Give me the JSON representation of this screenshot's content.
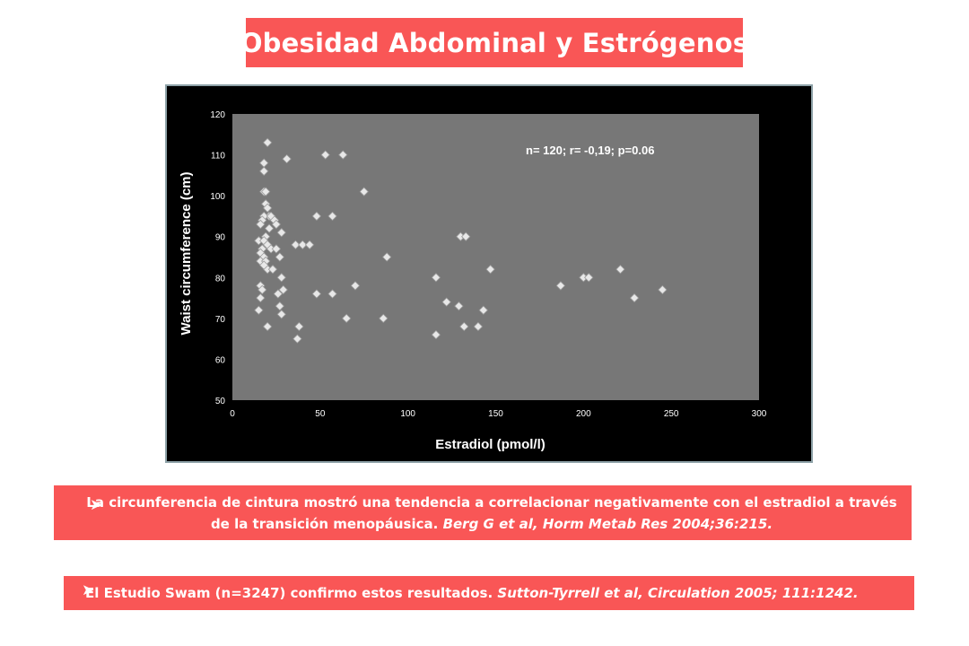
{
  "title": "Obesidad Abdominal y Estrógenos",
  "notes": {
    "bullet_icon": "arrow-bullet-icon",
    "note1_text": "La circunferencia de cintura mostró una tendencia a correlacionar negativamente con el estradiol a través de la transición menopáusica.",
    "note1_cite": "Berg G et al, Horm Metab Res 2004;36:215.",
    "note2_text": "El Estudio Swam (n=3247) confirmo estos resultados.",
    "note2_cite": "Sutton-Tyrrell et al, Circulation 2005; 111:1242."
  },
  "colors": {
    "accent": "#f95656",
    "plot_background": "#777777",
    "frame_background": "#000000",
    "frame_border": "#8fa3a9",
    "marker": "#e8e8e8"
  },
  "chart_data": {
    "type": "scatter",
    "annotation": "n= 120; r= -0,19; p=0.06",
    "xlabel": "Estradiol (pmol/l)",
    "ylabel": "Waist circumference (cm)",
    "xlim": [
      0,
      300
    ],
    "ylim": [
      50,
      120
    ],
    "xticks": [
      0,
      50,
      100,
      150,
      200,
      250,
      300
    ],
    "yticks": [
      50,
      60,
      70,
      80,
      90,
      100,
      110,
      120
    ],
    "grid": false,
    "legend": "none",
    "marker": "diamond",
    "points": [
      [
        20,
        113
      ],
      [
        18,
        108
      ],
      [
        18,
        106
      ],
      [
        31,
        109
      ],
      [
        53,
        110
      ],
      [
        63,
        110
      ],
      [
        18,
        101
      ],
      [
        19,
        101
      ],
      [
        75,
        101
      ],
      [
        19,
        98
      ],
      [
        20,
        97
      ],
      [
        21,
        95
      ],
      [
        18,
        95
      ],
      [
        17,
        94
      ],
      [
        22,
        95
      ],
      [
        24,
        94
      ],
      [
        16,
        93
      ],
      [
        25,
        93
      ],
      [
        48,
        95
      ],
      [
        57,
        95
      ],
      [
        21,
        92
      ],
      [
        28,
        91
      ],
      [
        19,
        90
      ],
      [
        15,
        89
      ],
      [
        18,
        89
      ],
      [
        20,
        88
      ],
      [
        22,
        87
      ],
      [
        25,
        87
      ],
      [
        36,
        88
      ],
      [
        40,
        88
      ],
      [
        44,
        88
      ],
      [
        17,
        87
      ],
      [
        16,
        86
      ],
      [
        18,
        85
      ],
      [
        27,
        85
      ],
      [
        88,
        85
      ],
      [
        16,
        84
      ],
      [
        19,
        84
      ],
      [
        20,
        82
      ],
      [
        23,
        82
      ],
      [
        28,
        80
      ],
      [
        18,
        83
      ],
      [
        116,
        80
      ],
      [
        147,
        82
      ],
      [
        187,
        78
      ],
      [
        200,
        80
      ],
      [
        203,
        80
      ],
      [
        221,
        82
      ],
      [
        16,
        78
      ],
      [
        17,
        77
      ],
      [
        29,
        77
      ],
      [
        70,
        78
      ],
      [
        229,
        75
      ],
      [
        245,
        77
      ],
      [
        26,
        76
      ],
      [
        16,
        75
      ],
      [
        48,
        76
      ],
      [
        57,
        76
      ],
      [
        27,
        73
      ],
      [
        15,
        72
      ],
      [
        28,
        71
      ],
      [
        122,
        74
      ],
      [
        129,
        73
      ],
      [
        143,
        72
      ],
      [
        20,
        68
      ],
      [
        38,
        68
      ],
      [
        65,
        70
      ],
      [
        86,
        70
      ],
      [
        132,
        68
      ],
      [
        140,
        68
      ],
      [
        37,
        65
      ],
      [
        116,
        66
      ],
      [
        130,
        90
      ],
      [
        133,
        90
      ]
    ]
  }
}
